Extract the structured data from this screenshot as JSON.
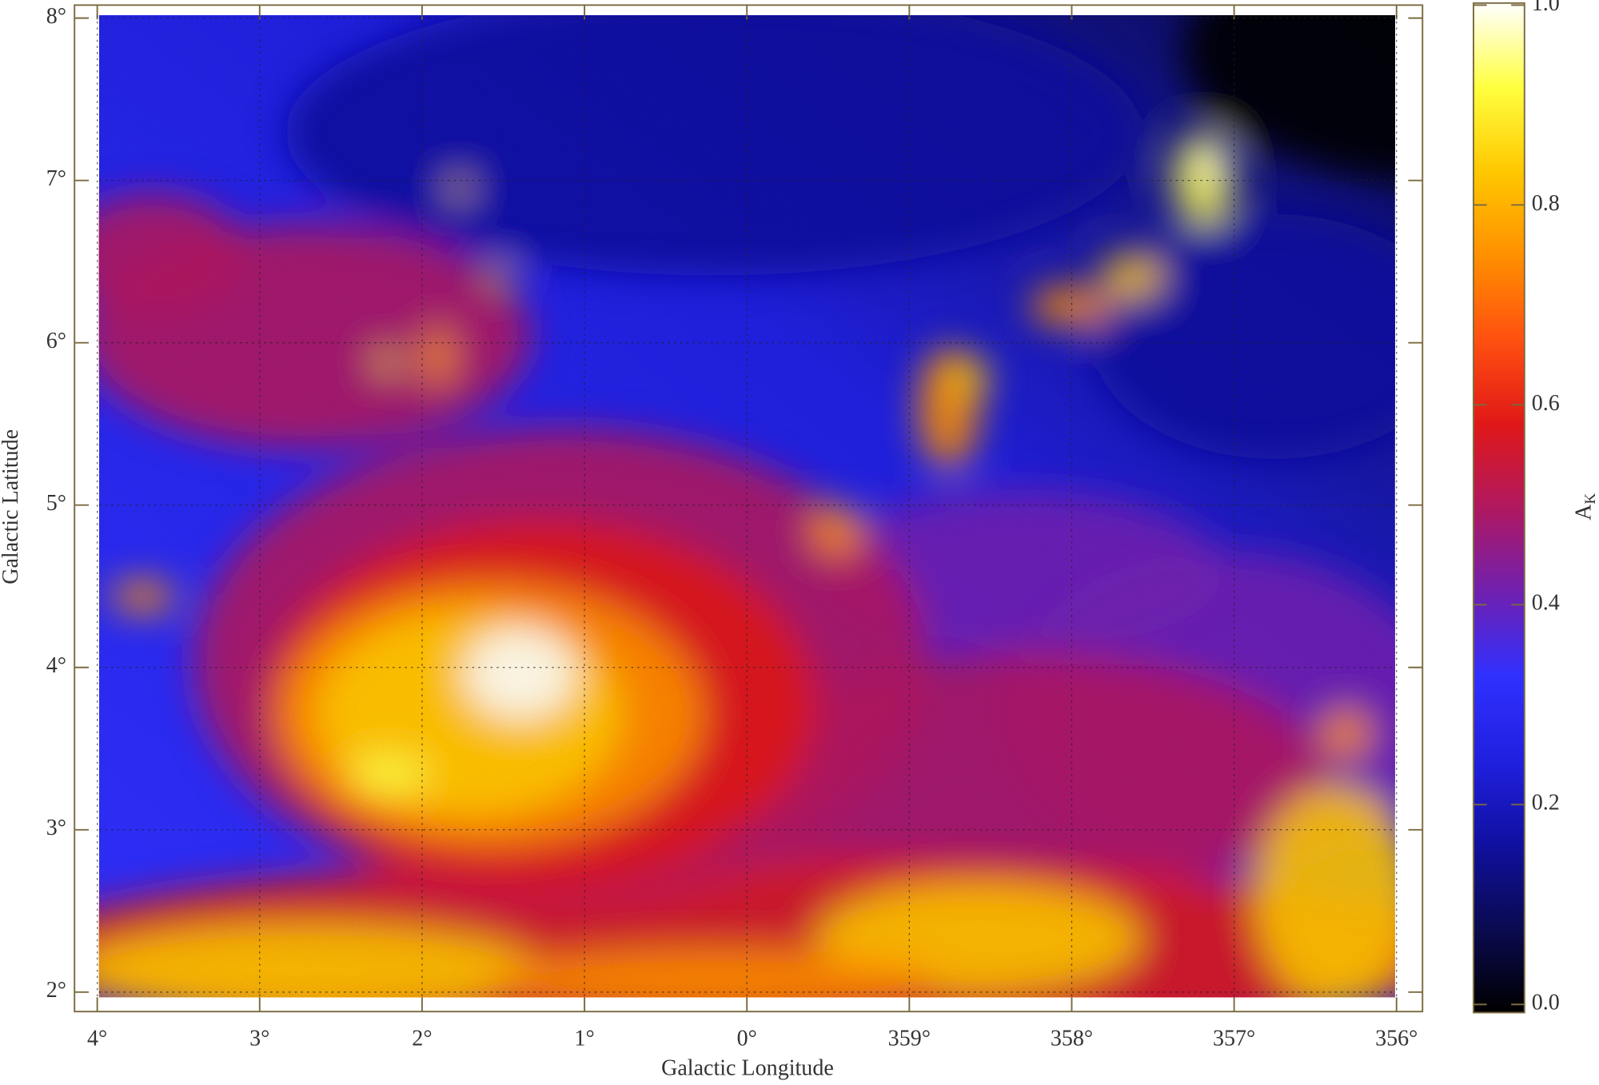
{
  "chart_data": {
    "type": "heatmap",
    "xlabel": "Galactic Longitude",
    "ylabel": "Galactic Latitude",
    "xlim": [
      4.14,
      355.84
    ],
    "ylim": [
      1.88,
      8.08
    ],
    "xticks": [
      {
        "value": 4,
        "label": "4°"
      },
      {
        "value": 3,
        "label": "3°"
      },
      {
        "value": 2,
        "label": "2°"
      },
      {
        "value": 1,
        "label": "1°"
      },
      {
        "value": 0,
        "label": "0°"
      },
      {
        "value": 359,
        "label": "359°"
      },
      {
        "value": 358,
        "label": "358°"
      },
      {
        "value": 357,
        "label": "357°"
      },
      {
        "value": 356,
        "label": "356°"
      }
    ],
    "yticks": [
      {
        "value": 2,
        "label": "2°"
      },
      {
        "value": 3,
        "label": "3°"
      },
      {
        "value": 4,
        "label": "4°"
      },
      {
        "value": 5,
        "label": "5°"
      },
      {
        "value": 6,
        "label": "6°"
      },
      {
        "value": 7,
        "label": "7°"
      },
      {
        "value": 8,
        "label": "8°"
      }
    ],
    "grid": true,
    "colorbar": {
      "label": "A",
      "label_subscript": "K",
      "lim": [
        0,
        1
      ],
      "ticks": [
        {
          "value": 0,
          "label": "0.0"
        },
        {
          "value": 0.2,
          "label": "0.2"
        },
        {
          "value": 0.4,
          "label": "0.4"
        },
        {
          "value": 0.6,
          "label": "0.6"
        },
        {
          "value": 0.8,
          "label": "0.8"
        },
        {
          "value": 1,
          "label": "1.0"
        }
      ],
      "colormap": [
        "#000000",
        "#0a0a50",
        "#1010a0",
        "#2020e0",
        "#3030ff",
        "#7020b0",
        "#b01860",
        "#e01818",
        "#ff5010",
        "#ff9000",
        "#ffc800",
        "#ffff40",
        "#ffffff"
      ]
    }
  }
}
